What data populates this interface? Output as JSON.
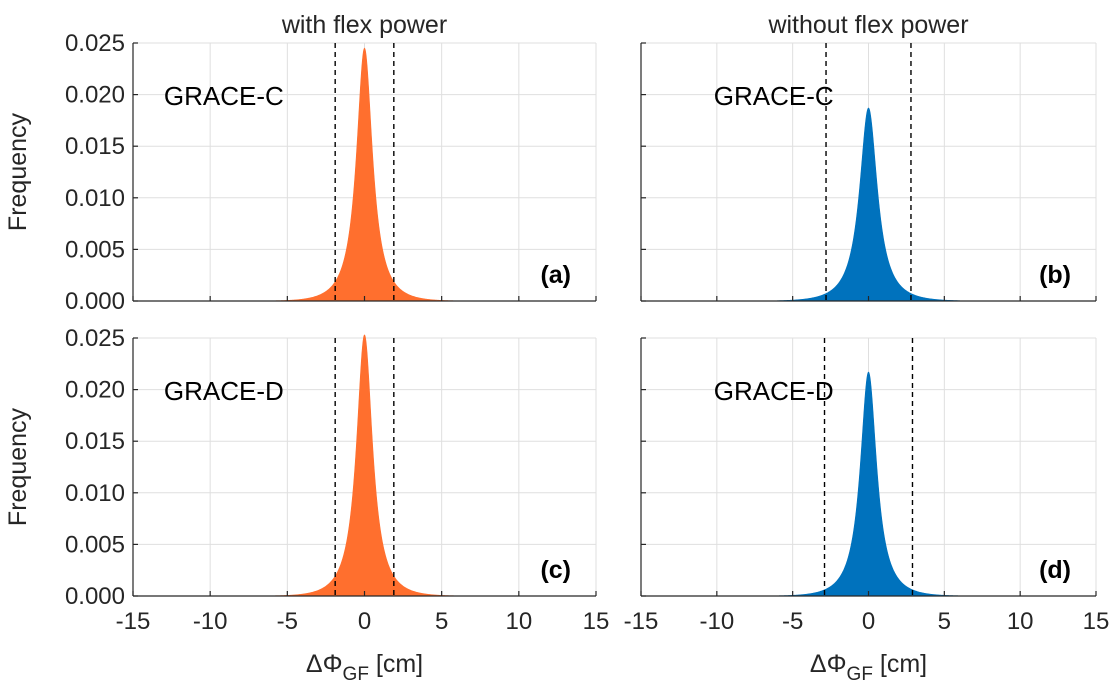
{
  "column_titles": [
    "with flex power",
    "without flex power"
  ],
  "colors": {
    "with_flex": "#FF6F2E",
    "without_flex": "#0072BD"
  },
  "x_label": {
    "symbol": "ΔΦ",
    "subscript": "GF",
    "unit": "[cm]"
  },
  "y_label": "Frequency",
  "chart_data": [
    {
      "type": "area",
      "panel": "(a)",
      "satellite": "GRACE-C",
      "column": "with flex power",
      "xlim": [
        -15,
        15
      ],
      "ylim": [
        0,
        0.025
      ],
      "x_ticks": [
        "-15",
        "-10",
        "-5",
        "0",
        "5",
        "10",
        "15"
      ],
      "y_ticks": [
        "0.000",
        "0.005",
        "0.010",
        "0.015",
        "0.020",
        "0.025"
      ],
      "peak_frequency": 0.0245,
      "thresholds": [
        -1.9,
        1.9
      ],
      "spread": 1.15,
      "xlabel": "ΔΦGF [cm]",
      "ylabel": "Frequency",
      "grid": true
    },
    {
      "type": "area",
      "panel": "(b)",
      "satellite": "GRACE-C",
      "column": "without flex power",
      "xlim": [
        -15,
        15
      ],
      "ylim": [
        0,
        0.025
      ],
      "x_ticks": [
        "-15",
        "-10",
        "-5",
        "0",
        "5",
        "10",
        "15"
      ],
      "y_ticks": [
        "0.000",
        "0.005",
        "0.010",
        "0.015",
        "0.020",
        "0.025"
      ],
      "peak_frequency": 0.0187,
      "thresholds": [
        -2.8,
        2.8
      ],
      "spread": 1.3,
      "xlabel": "ΔΦGF [cm]",
      "ylabel": "Frequency",
      "grid": true
    },
    {
      "type": "area",
      "panel": "(c)",
      "satellite": "GRACE-D",
      "column": "with flex power",
      "xlim": [
        -15,
        15
      ],
      "ylim": [
        0,
        0.025
      ],
      "x_ticks": [
        "-15",
        "-10",
        "-5",
        "0",
        "5",
        "10",
        "15"
      ],
      "y_ticks": [
        "0.000",
        "0.005",
        "0.010",
        "0.015",
        "0.020",
        "0.025"
      ],
      "peak_frequency": 0.0253,
      "thresholds": [
        -1.9,
        1.9
      ],
      "spread": 1.15,
      "xlabel": "ΔΦGF [cm]",
      "ylabel": "Frequency",
      "grid": true
    },
    {
      "type": "area",
      "panel": "(d)",
      "satellite": "GRACE-D",
      "column": "without flex power",
      "xlim": [
        -15,
        15
      ],
      "ylim": [
        0,
        0.025
      ],
      "x_ticks": [
        "-15",
        "-10",
        "-5",
        "0",
        "5",
        "10",
        "15"
      ],
      "y_ticks": [
        "0.000",
        "0.005",
        "0.010",
        "0.015",
        "0.020",
        "0.025"
      ],
      "peak_frequency": 0.0217,
      "thresholds": [
        -2.9,
        2.9
      ],
      "spread": 1.2,
      "xlabel": "ΔΦGF [cm]",
      "ylabel": "Frequency",
      "grid": true
    }
  ]
}
